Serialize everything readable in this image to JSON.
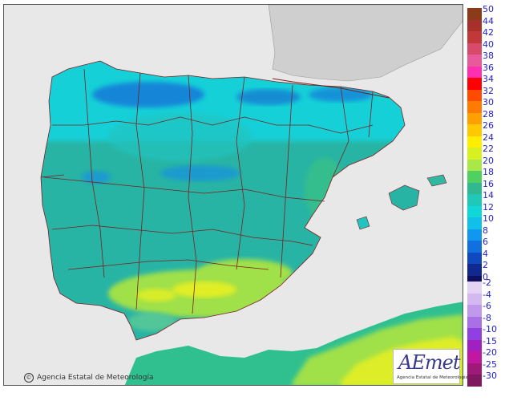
{
  "credit": {
    "symbol": "©",
    "text": "Agencia Estatal de Meteorología"
  },
  "logo": {
    "wordmark": "AEmet",
    "subtitle": "Agencia Estatal de Meteorología"
  },
  "legend": {
    "positive": [
      {
        "label": "50",
        "color": "#8b3a1a"
      },
      {
        "label": "44",
        "color": "#a8302a"
      },
      {
        "label": "42",
        "color": "#c03838"
      },
      {
        "label": "40",
        "color": "#d84a6a"
      },
      {
        "label": "38",
        "color": "#e85a9a"
      },
      {
        "label": "36",
        "color": "#ff30b0"
      },
      {
        "label": "34",
        "color": "#ff0000"
      },
      {
        "label": "32",
        "color": "#ff4a00"
      },
      {
        "label": "30",
        "color": "#ff7a00"
      },
      {
        "label": "28",
        "color": "#ffa000"
      },
      {
        "label": "26",
        "color": "#ffc800"
      },
      {
        "label": "24",
        "color": "#ffee00"
      },
      {
        "label": "22",
        "color": "#d8f020"
      },
      {
        "label": "20",
        "color": "#a8e848"
      },
      {
        "label": "18",
        "color": "#50d060"
      },
      {
        "label": "16",
        "color": "#30b890"
      },
      {
        "label": "14",
        "color": "#20c8b8"
      },
      {
        "label": "12",
        "color": "#10d8d8"
      },
      {
        "label": "10",
        "color": "#10c0e8"
      },
      {
        "label": "8",
        "color": "#1098f0"
      },
      {
        "label": "6",
        "color": "#1070e0"
      },
      {
        "label": "4",
        "color": "#1048c0"
      },
      {
        "label": "2",
        "color": "#102890"
      },
      {
        "label": "0",
        "color": "#101060"
      }
    ],
    "negative": [
      {
        "label": "-2",
        "color": "#e4d4f4"
      },
      {
        "label": "-4",
        "color": "#d4b8f0"
      },
      {
        "label": "-6",
        "color": "#c098ec"
      },
      {
        "label": "-8",
        "color": "#a870e4"
      },
      {
        "label": "-10",
        "color": "#9040e0"
      },
      {
        "label": "-15",
        "color": "#a020c0"
      },
      {
        "label": "-20",
        "color": "#c018a0"
      },
      {
        "label": "-25",
        "color": "#a01878"
      },
      {
        "label": "-30",
        "color": "#801860"
      }
    ]
  },
  "colors": {
    "sea": "#e8e8e8",
    "land_base": "#28b4a4",
    "north_coast": "#18d0d8",
    "mountains": "#1878d8",
    "warm_south": "#a0e04a",
    "hot_spots": "#e8f020",
    "africa": "#30c090",
    "borders": "#7a1f1f"
  }
}
